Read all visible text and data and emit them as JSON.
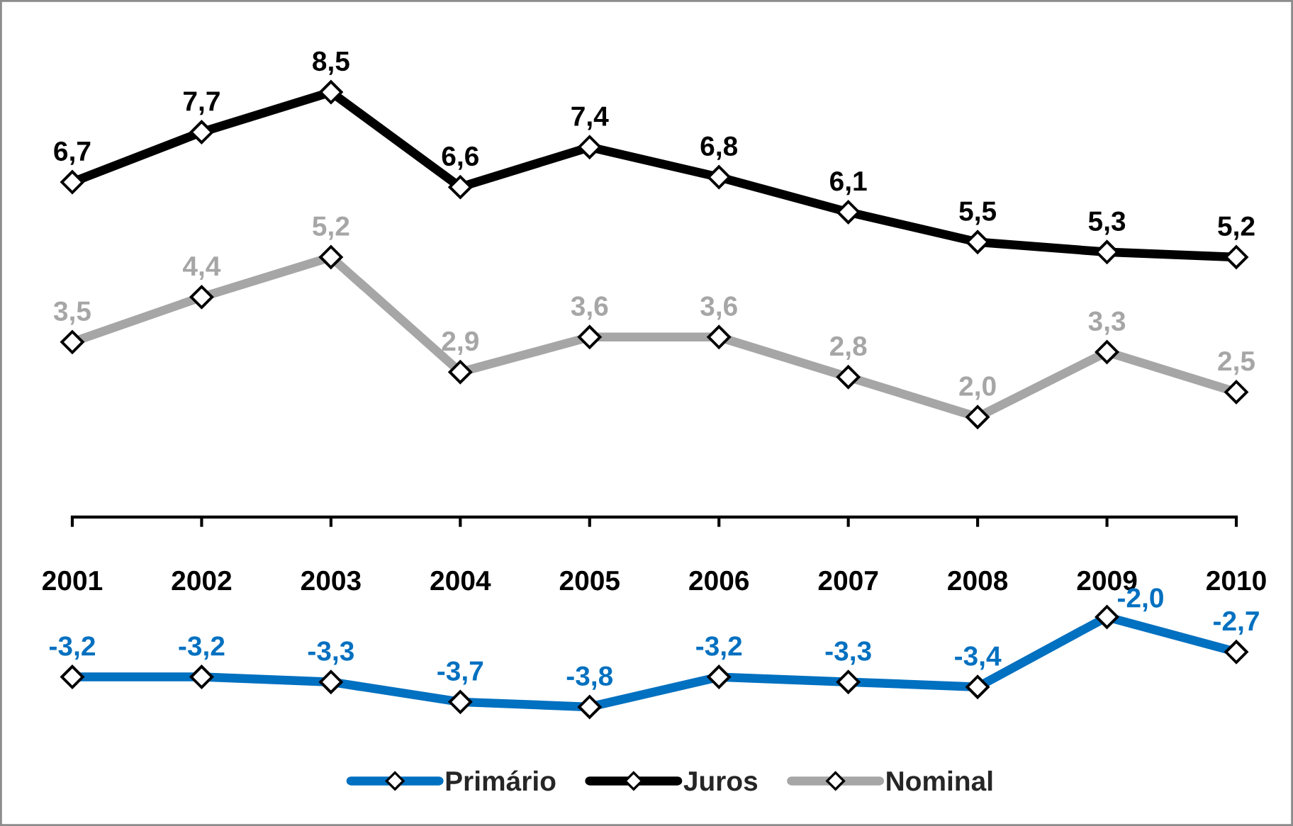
{
  "chart_data": {
    "type": "line",
    "categories": [
      "2001",
      "2002",
      "2003",
      "2004",
      "2005",
      "2006",
      "2007",
      "2008",
      "2009",
      "2010"
    ],
    "series": [
      {
        "name": "Primário",
        "color": "#0070c0",
        "values": [
          -3.2,
          -3.2,
          -3.3,
          -3.7,
          -3.8,
          -3.2,
          -3.3,
          -3.4,
          -2.0,
          -2.7
        ],
        "value_labels": [
          "-3,2",
          "-3,2",
          "-3,3",
          "-3,7",
          "-3,8",
          "-3,2",
          "-3,3",
          "-3,4",
          "-2,0",
          "-2,7"
        ]
      },
      {
        "name": "Juros",
        "color": "#000000",
        "values": [
          6.7,
          7.7,
          8.5,
          6.6,
          7.4,
          6.8,
          6.1,
          5.5,
          5.3,
          5.2
        ],
        "value_labels": [
          "6,7",
          "7,7",
          "8,5",
          "6,6",
          "7,4",
          "6,8",
          "6,1",
          "5,5",
          "5,3",
          "5,2"
        ]
      },
      {
        "name": "Nominal",
        "color": "#a6a6a6",
        "values": [
          3.5,
          4.4,
          5.2,
          2.9,
          3.6,
          3.6,
          2.8,
          2.0,
          3.3,
          2.5
        ],
        "value_labels": [
          "3,5",
          "4,4",
          "5,2",
          "2,9",
          "3,6",
          "3,6",
          "2,8",
          "2,0",
          "3,3",
          "2,5"
        ]
      }
    ],
    "tick_labels": "x",
    "marker": "diamond",
    "line_style": "solid",
    "legend": "bottom"
  }
}
